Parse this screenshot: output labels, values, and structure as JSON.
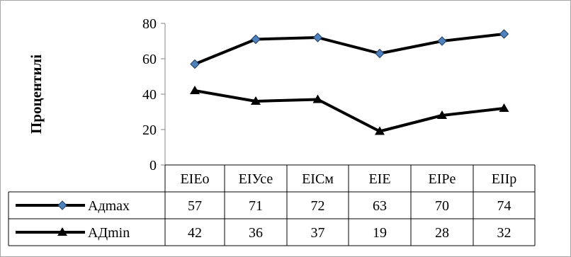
{
  "chart_data": {
    "type": "line",
    "title": "",
    "xlabel": "",
    "ylabel": "Процентилі",
    "ylim": [
      0,
      80
    ],
    "yticks": [
      "0",
      "20",
      "40",
      "60",
      "80"
    ],
    "grid": false,
    "legend": "data-table-rows",
    "categories": [
      "EIEo",
      "EIУсе",
      "EIСм",
      "EIE",
      "EIPe",
      "EIIp"
    ],
    "series": [
      {
        "name": "Адmax",
        "values": [
          57,
          71,
          72,
          63,
          70,
          74
        ],
        "marker": "diamond",
        "line_color": "#000000",
        "marker_color": "#4f81bd"
      },
      {
        "name": "АДmin",
        "values": [
          42,
          36,
          37,
          19,
          28,
          32
        ],
        "marker": "triangle",
        "line_color": "#000000",
        "marker_color": "#000000"
      }
    ]
  }
}
